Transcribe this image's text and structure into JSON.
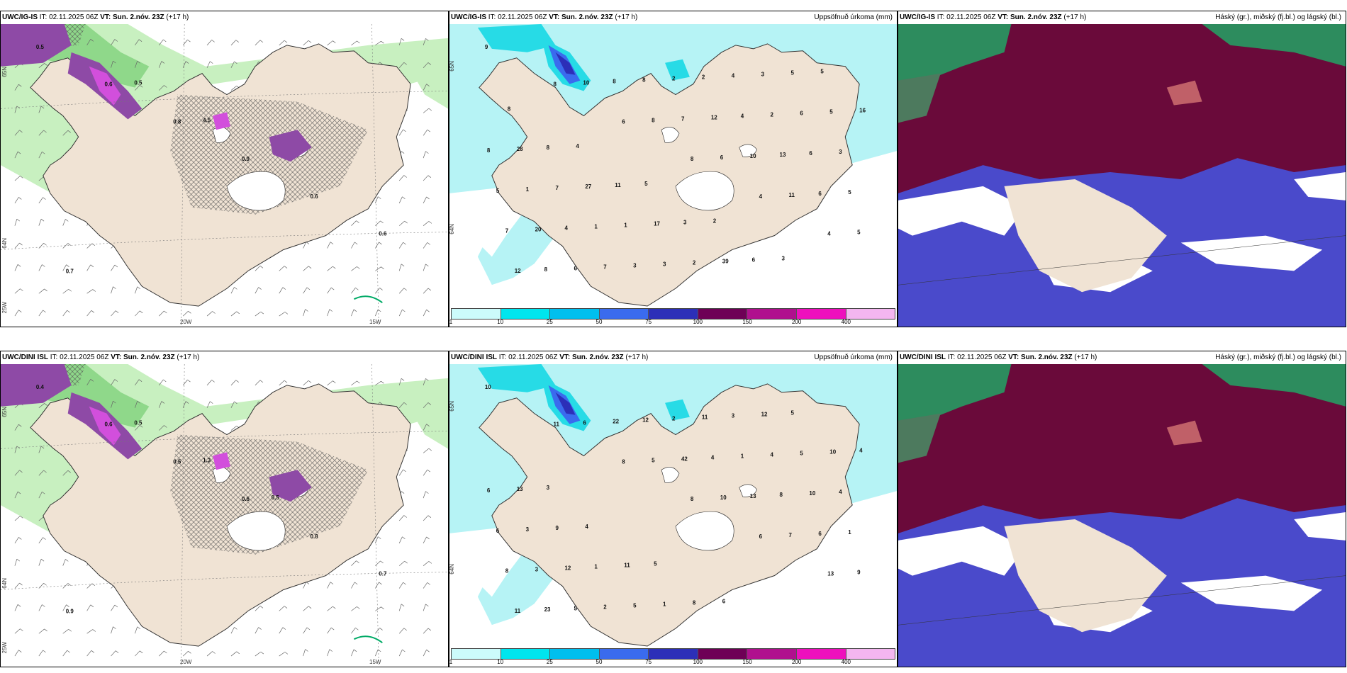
{
  "panels": [
    {
      "model": "UWC/IG-IS",
      "it": "IT: 02.11.2025 06Z",
      "vt_label": "VT:",
      "vt": "Sun. 2.nóv. 23Z",
      "lead": "(+17 h)",
      "right_title": ""
    },
    {
      "model": "UWC/IG-IS",
      "it": "IT: 02.11.2025 06Z",
      "vt_label": "VT:",
      "vt": "Sun. 2.nóv. 23Z",
      "lead": "(+17 h)",
      "right_title": "Uppsöfnuð úrkoma (mm)"
    },
    {
      "model": "UWC/IG-IS",
      "it": "IT: 02.11.2025 06Z",
      "vt_label": "VT:",
      "vt": "Sun. 2.nóv. 23Z",
      "lead": "(+17 h)",
      "right_title": "Háský (gr.), miðský (fj.bl.) og lágský (bl.)"
    },
    {
      "model": "UWC/DINI ISL",
      "it": "IT: 02.11.2025 06Z",
      "vt_label": "VT:",
      "vt": "Sun. 2.nóv. 23Z",
      "lead": "(+17 h)",
      "right_title": ""
    },
    {
      "model": "UWC/DINI ISL",
      "it": "IT: 02.11.2025 06Z",
      "vt_label": "VT:",
      "vt": "Sun. 2.nóv. 23Z",
      "lead": "(+17 h)",
      "right_title": "Uppsöfnuð úrkoma (mm)"
    },
    {
      "model": "UWC/DINI ISL",
      "it": "IT: 02.11.2025 06Z",
      "vt_label": "VT:",
      "vt": "Sun. 2.nóv. 23Z",
      "lead": "(+17 h)",
      "right_title": "Háský (gr.), miðský (fj.bl.) og lágský (bl.)"
    }
  ],
  "axis_labels": {
    "lon_20w": "20W",
    "lon_15w": "15W",
    "lat_65n": "65N",
    "lat_64n": "64N",
    "lon_25w": "25W"
  },
  "colorbar": {
    "ticks": [
      "1",
      "10",
      "25",
      "50",
      "75",
      "100",
      "150",
      "200",
      "400"
    ],
    "colors": [
      "#ccfbfb",
      "#00e5ee",
      "#00bfee",
      "#3a6bee",
      "#2c2fb8",
      "#6e0056",
      "#b0108e",
      "#ee10bd",
      "#f4b6f0"
    ]
  },
  "colors": {
    "land": "#f0e3d4",
    "precip_light": "#b6f3f5",
    "precip_mid": "#27dbe6",
    "light_green": "#c8f0c0",
    "mid_green": "#8fd88a",
    "purple": "#8e4aa6",
    "magenta": "#d24fdc",
    "cloud_high": "#6a0a3a",
    "cloud_mid": "#4a4acb",
    "cloud_low": "#2d8c5e"
  },
  "precip_labels_top": [
    "9",
    "8",
    "6",
    "8",
    "4",
    "4",
    "12",
    "10",
    "8",
    "6",
    "11",
    "5",
    "8",
    "8",
    "7",
    "10",
    "6",
    "7",
    "6",
    "8",
    "12",
    "13",
    "5",
    "20",
    "7",
    "2",
    "4",
    "6",
    "5",
    "4",
    "3",
    "2",
    "2",
    "3",
    "1",
    "1",
    "3",
    "4",
    "6",
    "8",
    "7",
    "1",
    "2",
    "3",
    "5",
    "28",
    "27",
    "17",
    "39",
    "5",
    "16",
    "8",
    "11",
    "3",
    "6",
    "5",
    "8",
    "4",
    "5",
    "2",
    "3"
  ],
  "precip_labels_bottom": [
    "10",
    "11",
    "8",
    "8",
    "6",
    "13",
    "11",
    "6",
    "5",
    "10",
    "7",
    "9",
    "23",
    "22",
    "42",
    "13",
    "6",
    "8",
    "5",
    "12",
    "4",
    "8",
    "1",
    "3",
    "2",
    "2",
    "1",
    "10",
    "6",
    "12",
    "5",
    "11",
    "4",
    "4",
    "3",
    "1",
    "1",
    "3",
    "5",
    "6",
    "9",
    "11",
    "8",
    "12",
    "10",
    "13",
    "4",
    "5",
    "6",
    "5",
    "4",
    "3"
  ],
  "wind_labels_top": [
    "0.5",
    "0.6",
    "0.8",
    "0.9",
    "0.6",
    "0.6",
    "0.7",
    "0.5",
    "4.5"
  ],
  "wind_labels_bottom": [
    "0.4",
    "0.6",
    "0.5",
    "0.6",
    "0.8",
    "0.7",
    "0.9",
    "0.5",
    "1.3",
    "0.5"
  ]
}
